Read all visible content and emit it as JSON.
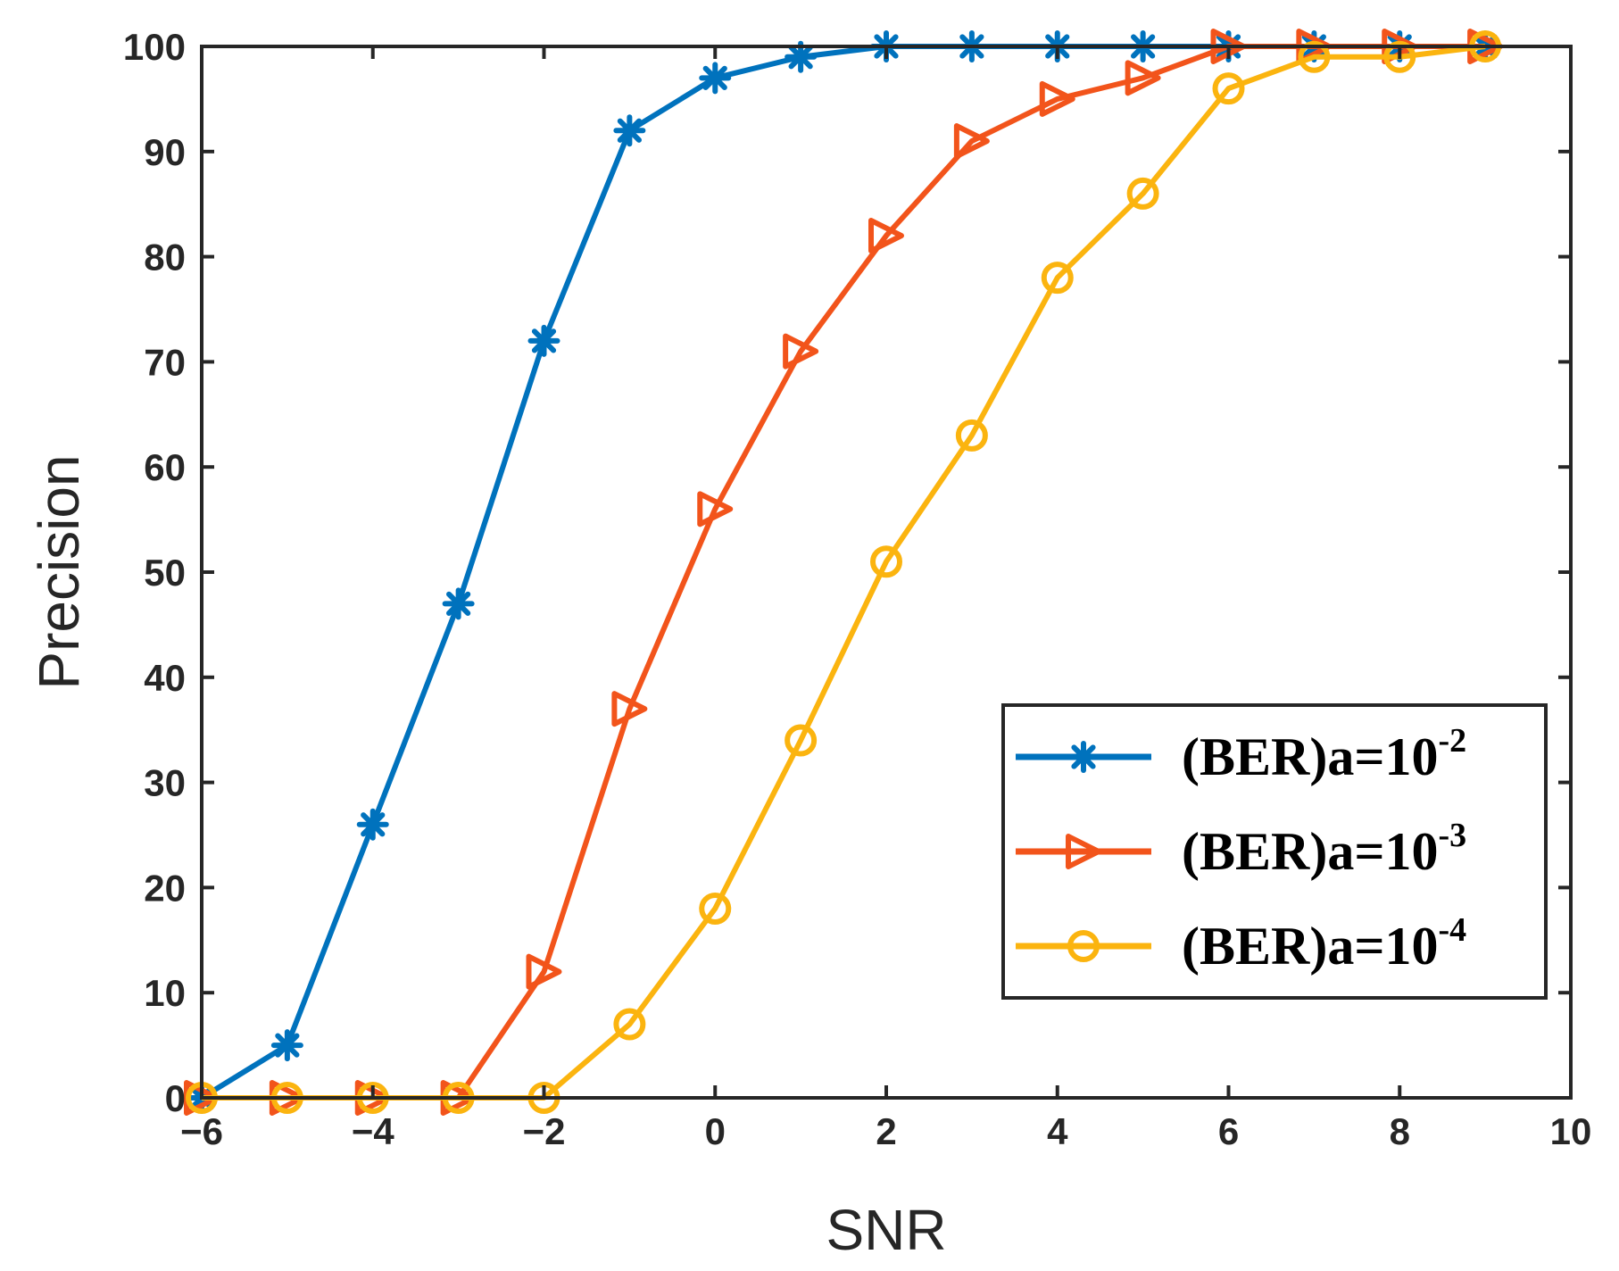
{
  "chart_data": {
    "type": "line",
    "title": "",
    "xlabel": "SNR",
    "ylabel": "Precision",
    "xlim": [
      -6,
      10
    ],
    "ylim": [
      0,
      100
    ],
    "xticks": [
      -6,
      -4,
      -2,
      0,
      2,
      4,
      6,
      8,
      10
    ],
    "xtick_labels": [
      "−6",
      "−4",
      "−2",
      "0",
      "2",
      "4",
      "6",
      "8",
      "10"
    ],
    "yticks": [
      0,
      10,
      20,
      30,
      40,
      50,
      60,
      70,
      80,
      90,
      100
    ],
    "ytick_labels": [
      "0",
      "10",
      "20",
      "30",
      "40",
      "50",
      "60",
      "70",
      "80",
      "90",
      "100"
    ],
    "grid": false,
    "legend_position": "bottom-right",
    "x": [
      -6,
      -5,
      -4,
      -3,
      -2,
      -1,
      0,
      1,
      2,
      3,
      4,
      5,
      6,
      7,
      8,
      9
    ],
    "series": [
      {
        "name": "(BER)a=10-2",
        "legend_base": "(BER)a=10",
        "legend_exp": "-2",
        "color": "#0072bd",
        "marker": "asterisk",
        "values": [
          0,
          5,
          26,
          47,
          72,
          92,
          97,
          99,
          100,
          100,
          100,
          100,
          100,
          100,
          100,
          100
        ]
      },
      {
        "name": "(BER)a=10-3",
        "legend_base": "(BER)a=10",
        "legend_exp": "-3",
        "color": "#f2541b",
        "marker": "triangle-right",
        "values": [
          0,
          0,
          0,
          0,
          12,
          37,
          56,
          71,
          82,
          91,
          95,
          97,
          100,
          100,
          100,
          100
        ]
      },
      {
        "name": "(BER)a=10-4",
        "legend_base": "(BER)a=10",
        "legend_exp": "-4",
        "color": "#fbb40f",
        "marker": "circle",
        "values": [
          0,
          0,
          0,
          0,
          0,
          7,
          18,
          34,
          51,
          63,
          78,
          86,
          96,
          99,
          99,
          100
        ]
      }
    ]
  }
}
